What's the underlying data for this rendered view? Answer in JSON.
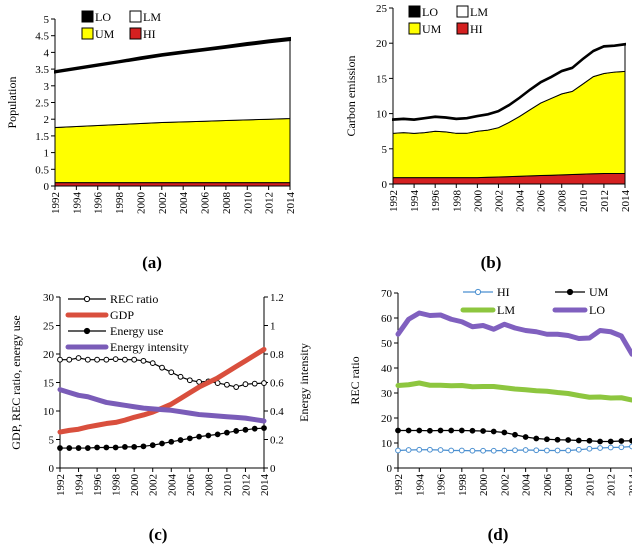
{
  "chart_data": [
    {
      "panel": "(a)",
      "type": "area",
      "stacked": true,
      "ylabel": "Population",
      "ylim": [
        0,
        5
      ],
      "yticks": [
        "0",
        "0.5",
        "1",
        "1.5",
        "2",
        "2.5",
        "3",
        "3.5",
        "4",
        "4.5",
        "5"
      ],
      "x": [
        1992,
        1994,
        1996,
        1998,
        2000,
        2002,
        2004,
        2006,
        2008,
        2010,
        2012,
        2014
      ],
      "legend": [
        "LO",
        "LM",
        "UM",
        "HI"
      ],
      "series": [
        {
          "name": "HI",
          "color": "#d42020",
          "values": [
            0.1,
            0.1,
            0.1,
            0.1,
            0.1,
            0.1,
            0.1,
            0.1,
            0.1,
            0.1,
            0.1,
            0.1
          ]
        },
        {
          "name": "UM",
          "color": "#ffff00",
          "values": [
            1.65,
            1.68,
            1.71,
            1.74,
            1.77,
            1.8,
            1.82,
            1.84,
            1.86,
            1.88,
            1.9,
            1.92
          ]
        },
        {
          "name": "LM",
          "color": "#ffffff",
          "values": [
            1.65,
            1.72,
            1.79,
            1.86,
            1.93,
            2.0,
            2.06,
            2.12,
            2.18,
            2.24,
            2.3,
            2.35
          ]
        },
        {
          "name": "LO",
          "color": "#000000",
          "values": [
            0.04,
            0.04,
            0.04,
            0.04,
            0.05,
            0.05,
            0.05,
            0.05,
            0.05,
            0.06,
            0.06,
            0.06
          ]
        }
      ]
    },
    {
      "panel": "(b)",
      "type": "area",
      "stacked": true,
      "ylabel": "Carbon emission",
      "ylim": [
        0,
        25
      ],
      "yticks": [
        "0",
        "5",
        "10",
        "15",
        "20",
        "25"
      ],
      "x": [
        1992,
        1993,
        1994,
        1995,
        1996,
        1997,
        1998,
        1999,
        2000,
        2001,
        2002,
        2003,
        2004,
        2005,
        2006,
        2007,
        2008,
        2009,
        2010,
        2011,
        2012,
        2013,
        2014
      ],
      "legend": [
        "LO",
        "LM",
        "UM",
        "HI"
      ],
      "series": [
        {
          "name": "HI",
          "color": "#d42020",
          "values": [
            0.9,
            0.9,
            0.9,
            0.9,
            0.9,
            0.9,
            0.9,
            0.9,
            0.9,
            0.95,
            1.0,
            1.05,
            1.1,
            1.15,
            1.2,
            1.25,
            1.3,
            1.35,
            1.4,
            1.45,
            1.5,
            1.5,
            1.5
          ]
        },
        {
          "name": "UM",
          "color": "#ffff00",
          "values": [
            6.3,
            6.4,
            6.3,
            6.4,
            6.6,
            6.5,
            6.3,
            6.3,
            6.6,
            6.7,
            7.0,
            7.7,
            8.5,
            9.4,
            10.3,
            10.9,
            11.5,
            11.8,
            12.8,
            13.8,
            14.2,
            14.4,
            14.5
          ]
        },
        {
          "name": "LM",
          "color": "#ffffff",
          "values": [
            1.9,
            1.9,
            1.9,
            2.0,
            2.0,
            2.0,
            2.0,
            2.1,
            2.1,
            2.2,
            2.3,
            2.4,
            2.6,
            2.8,
            2.9,
            3.0,
            3.2,
            3.3,
            3.5,
            3.6,
            3.8,
            3.7,
            3.8
          ]
        },
        {
          "name": "LO",
          "color": "#000000",
          "values": [
            0.1,
            0.1,
            0.1,
            0.1,
            0.1,
            0.1,
            0.1,
            0.1,
            0.1,
            0.1,
            0.1,
            0.1,
            0.1,
            0.1,
            0.1,
            0.1,
            0.1,
            0.1,
            0.1,
            0.1,
            0.1,
            0.1,
            0.1
          ]
        }
      ]
    },
    {
      "panel": "(c)",
      "type": "line",
      "ylabel": "GDP, REC ratio, energy use",
      "y2label": "Energy intensity",
      "ylim": [
        0,
        30
      ],
      "y2lim": [
        0,
        1.2
      ],
      "yticks": [
        "0",
        "5",
        "10",
        "15",
        "20",
        "25",
        "30"
      ],
      "y2ticks": [
        "0",
        "0.2",
        "0.4",
        "0.6",
        "0.8",
        "1",
        "1.2"
      ],
      "x": [
        1992,
        1993,
        1994,
        1995,
        1996,
        1997,
        1998,
        1999,
        2000,
        2001,
        2002,
        2003,
        2004,
        2005,
        2006,
        2007,
        2008,
        2009,
        2010,
        2011,
        2012,
        2013,
        2014
      ],
      "series": [
        {
          "name": "REC ratio",
          "color": "#000000",
          "marker": "open-circle",
          "axis": "left",
          "values": [
            19.0,
            19.0,
            19.3,
            19.0,
            19.0,
            19.0,
            19.1,
            19.0,
            19.0,
            18.8,
            18.4,
            17.6,
            16.8,
            16.0,
            15.4,
            15.1,
            15.2,
            14.9,
            14.6,
            14.2,
            14.7,
            14.8,
            14.9
          ]
        },
        {
          "name": "GDP",
          "color": "#d94f3d",
          "marker": "none",
          "axis": "left",
          "values": [
            6.3,
            6.6,
            6.8,
            7.2,
            7.5,
            7.8,
            8.0,
            8.4,
            8.9,
            9.3,
            9.8,
            10.5,
            11.2,
            12.2,
            13.2,
            14.2,
            15.0,
            15.8,
            16.8,
            17.8,
            18.8,
            19.8,
            20.8
          ]
        },
        {
          "name": "Energy use",
          "color": "#000000",
          "marker": "filled-circle",
          "axis": "left",
          "values": [
            3.5,
            3.5,
            3.5,
            3.5,
            3.6,
            3.6,
            3.6,
            3.7,
            3.7,
            3.8,
            4.0,
            4.3,
            4.6,
            4.9,
            5.2,
            5.5,
            5.7,
            5.9,
            6.2,
            6.5,
            6.7,
            6.9,
            7.0
          ]
        },
        {
          "name": "Energy intensity",
          "color": "#7a5cb8",
          "marker": "none",
          "axis": "right",
          "values": [
            0.55,
            0.53,
            0.51,
            0.5,
            0.48,
            0.46,
            0.45,
            0.44,
            0.43,
            0.42,
            0.415,
            0.41,
            0.405,
            0.395,
            0.385,
            0.375,
            0.37,
            0.365,
            0.36,
            0.355,
            0.35,
            0.34,
            0.33
          ]
        }
      ]
    },
    {
      "panel": "(d)",
      "type": "line",
      "ylabel": "REC ratio",
      "ylim": [
        0,
        70
      ],
      "yticks": [
        "0",
        "10",
        "20",
        "30",
        "40",
        "50",
        "60",
        "70"
      ],
      "x": [
        1992,
        1993,
        1994,
        1995,
        1996,
        1997,
        1998,
        1999,
        2000,
        2001,
        2002,
        2003,
        2004,
        2005,
        2006,
        2007,
        2008,
        2009,
        2010,
        2011,
        2012,
        2013,
        2014
      ],
      "series": [
        {
          "name": "HI",
          "color": "#4a8fd0",
          "marker": "open-circle",
          "values": [
            7.0,
            7.2,
            7.3,
            7.3,
            7.2,
            7.0,
            7.0,
            6.9,
            6.9,
            6.9,
            7.0,
            7.1,
            7.2,
            7.1,
            7.0,
            7.0,
            7.0,
            7.3,
            7.7,
            8.0,
            8.2,
            8.3,
            8.6
          ]
        },
        {
          "name": "UM",
          "color": "#000000",
          "marker": "filled-circle",
          "values": [
            15.0,
            15.0,
            15.0,
            14.9,
            15.0,
            15.0,
            15.0,
            14.9,
            14.8,
            14.6,
            14.2,
            13.3,
            12.4,
            11.8,
            11.5,
            11.3,
            11.2,
            11.0,
            10.9,
            10.6,
            10.6,
            10.8,
            10.9
          ]
        },
        {
          "name": "LM",
          "color": "#8dc63f",
          "marker": "none",
          "values": [
            33.0,
            33.3,
            34.0,
            33.1,
            33.1,
            32.9,
            33.0,
            32.5,
            32.6,
            32.6,
            32.1,
            31.6,
            31.3,
            30.9,
            30.7,
            30.2,
            29.8,
            29.0,
            28.3,
            28.4,
            28.0,
            28.1,
            27.2
          ]
        },
        {
          "name": "LO",
          "color": "#8060bf",
          "marker": "none",
          "values": [
            53.5,
            59.5,
            62.0,
            61.0,
            61.2,
            59.5,
            58.5,
            56.5,
            57.0,
            55.5,
            57.5,
            56.0,
            55.0,
            54.5,
            53.5,
            53.5,
            53.0,
            51.8,
            52.0,
            55.0,
            54.5,
            52.8,
            45.5
          ]
        }
      ]
    }
  ],
  "year_ticks_a": [
    "1992",
    "1994",
    "1996",
    "1998",
    "2000",
    "2002",
    "2004",
    "2006",
    "2008",
    "2010",
    "2012",
    "2014"
  ]
}
